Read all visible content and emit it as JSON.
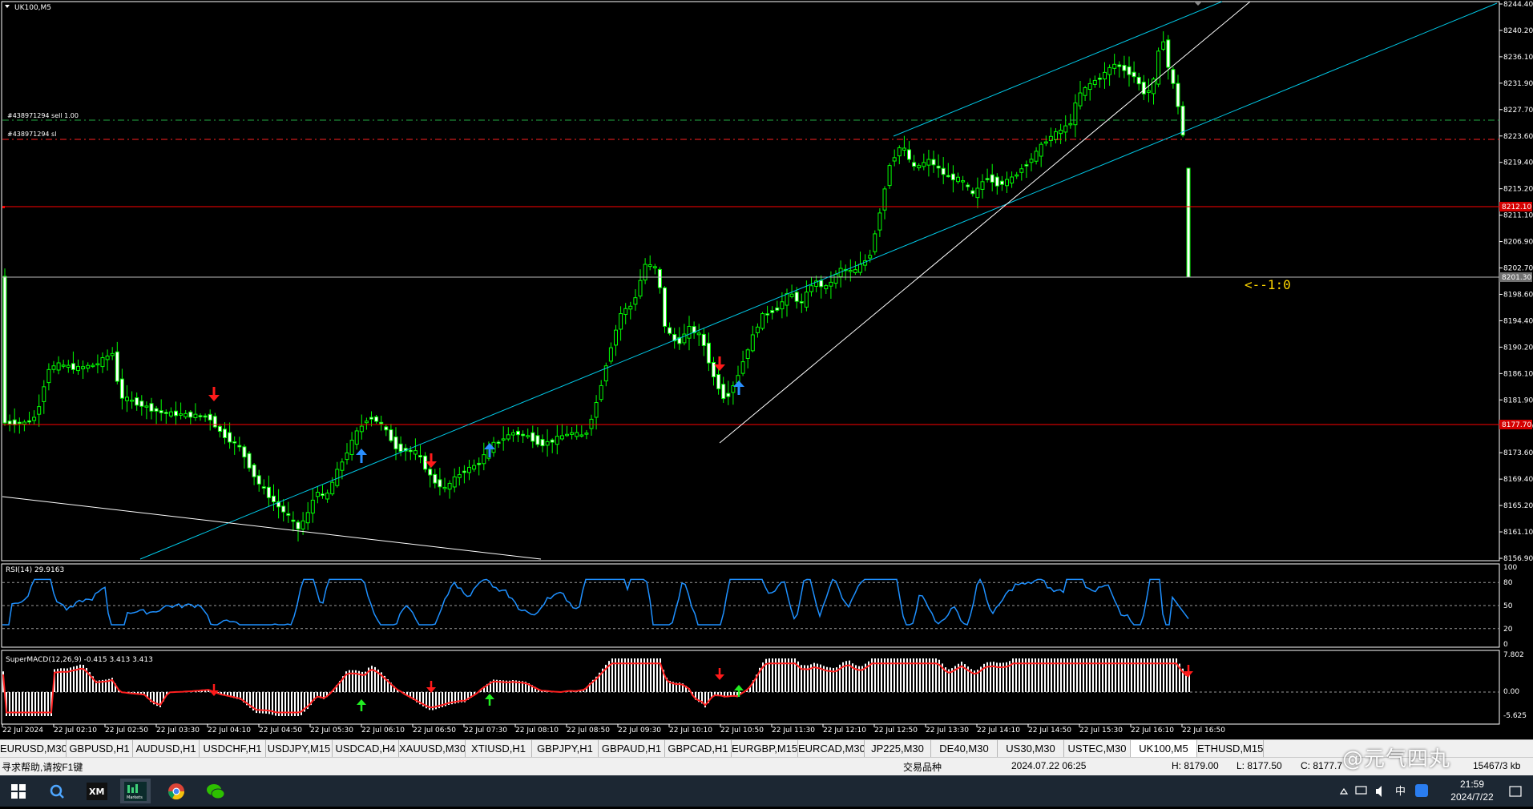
{
  "window": {
    "symbol_title": "UK100,M5"
  },
  "main_chart": {
    "price_labels": [
      "8244.40",
      "8240.20",
      "8236.10",
      "8231.90",
      "8227.70",
      "8223.60",
      "8219.40",
      "8215.20",
      "8211.10",
      "8206.90",
      "8202.70",
      "8198.60",
      "8194.40",
      "8190.20",
      "8186.10",
      "8181.90",
      "8177.70",
      "8173.60",
      "8169.40",
      "8165.20",
      "8161.10",
      "8156.90"
    ],
    "current_price_tag": "8201.30",
    "red_line_upper_tag": "8212.10",
    "red_line_lower_tag": "8177.70",
    "order_label_sell": "#438971294 sell 1.00",
    "order_label_sl": "#438971294 sl",
    "annotation_text": "<--1:0",
    "colors": {
      "background": "#000000",
      "bull_candle": "#00ff00",
      "bear_candle": "#ffffff",
      "channel": "#00c8e6",
      "trendline": "#ffffff",
      "red_level": "#ff0000",
      "annotation": "#ffd700"
    }
  },
  "rsi_panel": {
    "label": "RSI(14) 29.9163",
    "levels": [
      "100",
      "80",
      "50",
      "20",
      "0"
    ]
  },
  "macd_panel": {
    "label": "SuperMACD(12,26,9) -0.415 3.413 3.413",
    "levels": [
      "7.802",
      "0.00",
      "-5.625"
    ]
  },
  "time_axis": [
    "22 Jul 2024",
    "22 Jul 02:10",
    "22 Jul 02:50",
    "22 Jul 03:30",
    "22 Jul 04:10",
    "22 Jul 04:50",
    "22 Jul 05:30",
    "22 Jul 06:10",
    "22 Jul 06:50",
    "22 Jul 07:30",
    "22 Jul 08:10",
    "22 Jul 08:50",
    "22 Jul 09:30",
    "22 Jul 10:10",
    "22 Jul 10:50",
    "22 Jul 11:30",
    "22 Jul 12:10",
    "22 Jul 12:50",
    "22 Jul 13:30",
    "22 Jul 14:10",
    "22 Jul 14:50",
    "22 Jul 15:30",
    "22 Jul 16:10",
    "22 Jul 16:50"
  ],
  "symbol_tabs": [
    "EURUSD,M30",
    "GBPUSD,H1",
    "AUDUSD,H1",
    "USDCHF,H1",
    "USDJPY,M15",
    "USDCAD,H4",
    "XAUUSD,M30",
    "XTIUSD,H1",
    "GBPJPY,H1",
    "GBPAUD,H1",
    "GBPCAD,H1",
    "EURGBP,M15",
    "EURCAD,M30",
    "JP225,M30",
    "DE40,M30",
    "US30,M30",
    "USTEC,M30",
    "UK100,M5",
    "ETHUSD,M15"
  ],
  "active_tab": "UK100,M5",
  "status_bar": {
    "help_text": "寻求帮助,请按F1键",
    "profile": "交易品种",
    "datetime": "2024.07.22 06:25",
    "high": "H: 8179.00",
    "low": "L: 8177.50",
    "close": "C: 8177.7",
    "traffic": "15467/3 kb"
  },
  "taskbar": {
    "time": "21:59",
    "date": "2024/7/22",
    "ime": "中",
    "apps": [
      "windows-start",
      "search",
      "xm-terminal",
      "ic-markets-terminal",
      "chrome",
      "wechat"
    ]
  },
  "watermark": "@元气四丸"
}
